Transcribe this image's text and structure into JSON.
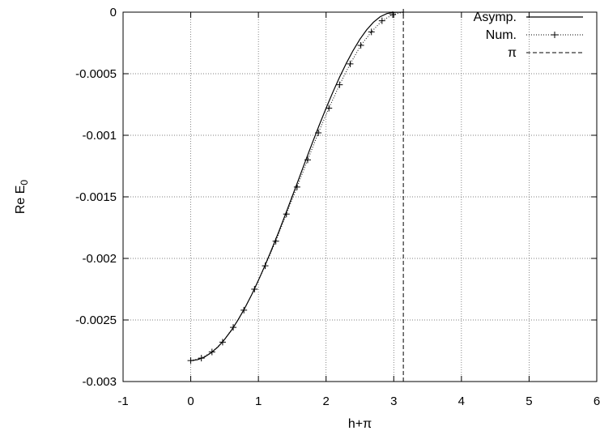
{
  "chart_data": {
    "type": "line",
    "title": "",
    "xlabel": "h+π",
    "ylabel": "Re E",
    "ylabel_subscript": "0",
    "xlim": [
      -1,
      6
    ],
    "ylim": [
      -0.003,
      0
    ],
    "x_ticks": [
      -1,
      0,
      1,
      2,
      3,
      4,
      5,
      6
    ],
    "x_tick_labels": [
      "-1",
      "0",
      "1",
      "2",
      "3",
      "4",
      "5",
      "6"
    ],
    "y_ticks": [
      0,
      -0.0005,
      -0.001,
      -0.0015,
      -0.002,
      -0.0025,
      -0.003
    ],
    "y_tick_labels": [
      "0",
      "-0.0005",
      "-0.001",
      "-0.0015",
      "-0.002",
      "-0.0025",
      "-0.003"
    ],
    "grid": true,
    "legend_position": "top-right",
    "series": [
      {
        "name": "Asymp.",
        "style": "solid",
        "color": "#000000",
        "x": [
          0,
          0.1,
          0.2,
          0.3,
          0.4,
          0.5,
          0.6,
          0.7,
          0.8,
          0.9,
          1.0,
          1.1,
          1.2,
          1.3,
          1.4,
          1.5,
          1.6,
          1.7,
          1.8,
          1.9,
          2.0,
          2.1,
          2.2,
          2.3,
          2.4,
          2.5,
          2.6,
          2.7,
          2.8,
          2.9,
          3.0,
          3.1,
          3.1416
        ],
        "y": [
          -0.00283,
          -0.002823,
          -0.002802,
          -0.002767,
          -0.00272,
          -0.002658,
          -0.002585,
          -0.002499,
          -0.002402,
          -0.002295,
          -0.002178,
          -0.002053,
          -0.001921,
          -0.001784,
          -0.001641,
          -0.001496,
          -0.001349,
          -0.001202,
          -0.001057,
          -0.000916,
          -0.00078,
          -0.00065,
          -0.000527,
          -0.000414,
          -0.000311,
          -0.00022,
          -0.000143,
          -8.2e-05,
          -3.7e-05,
          -1.1e-05,
          -2e-06,
          -3e-07,
          0
        ]
      },
      {
        "name": "Num.",
        "style": "dotted-with-plus-markers",
        "color": "#000000",
        "x": [
          0,
          0.157,
          0.314,
          0.471,
          0.628,
          0.785,
          0.942,
          1.1,
          1.257,
          1.414,
          1.571,
          1.728,
          1.885,
          2.042,
          2.199,
          2.356,
          2.513,
          2.67,
          2.827,
          2.985,
          3.1416
        ],
        "y": [
          -0.00283,
          -0.00281,
          -0.00276,
          -0.00268,
          -0.00256,
          -0.00242,
          -0.00225,
          -0.00206,
          -0.00186,
          -0.00164,
          -0.00142,
          -0.0012,
          -0.00098,
          -0.00078,
          -0.00059,
          -0.00042,
          -0.00027,
          -0.00016,
          -7e-05,
          -2e-05,
          0
        ]
      },
      {
        "name": "π",
        "style": "dashed",
        "color": "#000000",
        "x": [
          3.1416,
          3.1416
        ],
        "y": [
          -0.003,
          0
        ]
      }
    ]
  }
}
